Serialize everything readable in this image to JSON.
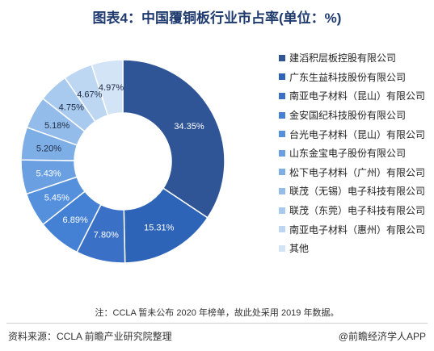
{
  "title": "图表4：中国覆铜板行业市占率(单位：%)",
  "note": "注：CCLA 暂未公布 2020 年榜单，故此处采用 2019 年数据。",
  "source": "资料来源：CCLA 前瞻产业研究院整理",
  "brand": "@前瞻经济学人APP",
  "chart_data": {
    "type": "pie",
    "donut": true,
    "title": "图表4：中国覆铜板行业市占率(单位：%)",
    "legend_position": "right",
    "categories": [
      "建滔积层板控股有限公司",
      "广东生益科技股份有限公司",
      "南亚电子材料（昆山）有限公司",
      "金安国纪科技股份有限公司",
      "台光电子材料（昆山）有限公司",
      "山东金宝电子股份有限公司",
      "松下电子材料（广州）有限公司",
      "联茂（无锡）电子科技有限公司",
      "联茂（东莞）电子科技有限公司",
      "南亚电子材料（惠州）有限公司",
      "其他"
    ],
    "values": [
      34.35,
      15.31,
      7.8,
      6.89,
      5.45,
      5.43,
      5.2,
      5.18,
      4.75,
      4.67,
      4.97
    ],
    "labels": [
      "34.35%",
      "15.31%",
      "7.80%",
      "6.89%",
      "5.45%",
      "5.43%",
      "5.20%",
      "5.18%",
      "4.75%",
      "4.67%",
      "4.97%"
    ],
    "colors": [
      "#2f5597",
      "#2e64b8",
      "#3a71c7",
      "#4480d4",
      "#5490dc",
      "#6aa0e2",
      "#7eaee6",
      "#93bcea",
      "#a8caee",
      "#bdd7f2",
      "#d3e4f6"
    ]
  }
}
